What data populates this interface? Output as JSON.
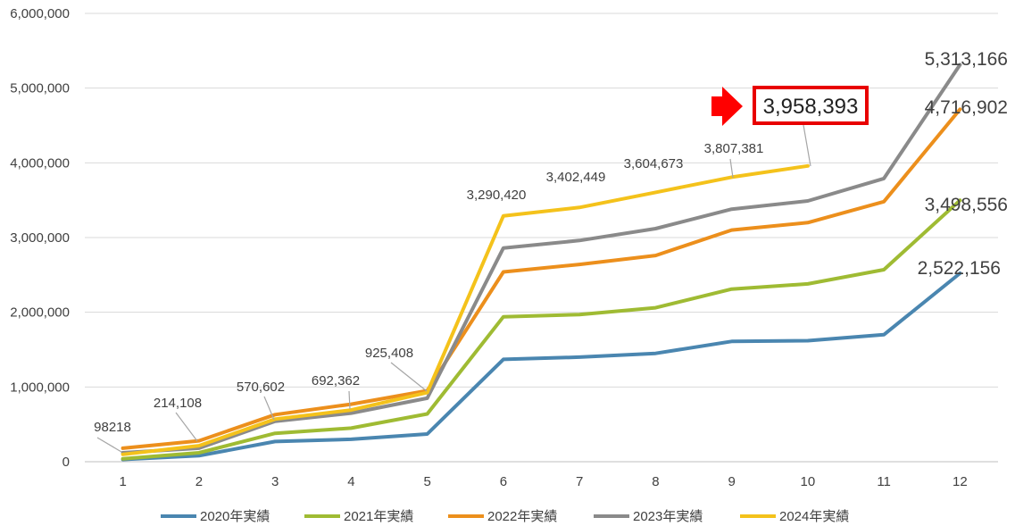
{
  "chart_data": {
    "type": "line",
    "title": "",
    "xlabel": "",
    "ylabel": "",
    "categories": [
      "1",
      "2",
      "3",
      "4",
      "5",
      "6",
      "7",
      "8",
      "9",
      "10",
      "11",
      "12"
    ],
    "ylim": [
      0,
      6000000
    ],
    "yticks": [
      0,
      1000000,
      2000000,
      3000000,
      4000000,
      5000000,
      6000000
    ],
    "ytick_labels": [
      "0",
      "1,000,000",
      "2,000,000",
      "3,000,000",
      "4,000,000",
      "5,000,000",
      "6,000,000"
    ],
    "grid": "horizontal",
    "legend_position": "bottom",
    "series": [
      {
        "name": "2020年実績",
        "color": "#4a86b0",
        "values": [
          30000,
          80000,
          270000,
          300000,
          370000,
          1370000,
          1400000,
          1450000,
          1610000,
          1620000,
          1700000,
          2522156
        ]
      },
      {
        "name": "2021年実績",
        "color": "#9fbb33",
        "values": [
          40000,
          120000,
          380000,
          450000,
          640000,
          1940000,
          1970000,
          2060000,
          2310000,
          2380000,
          2570000,
          3498556
        ]
      },
      {
        "name": "2022年実績",
        "color": "#ec8f1c",
        "values": [
          180000,
          280000,
          630000,
          770000,
          950000,
          2540000,
          2640000,
          2760000,
          3100000,
          3200000,
          3480000,
          4716902
        ]
      },
      {
        "name": "2023年実績",
        "color": "#8a8a8a",
        "values": [
          120000,
          180000,
          540000,
          650000,
          850000,
          2860000,
          2960000,
          3120000,
          3380000,
          3490000,
          3790000,
          5313166
        ]
      },
      {
        "name": "2024年実績",
        "color": "#f4c21b",
        "values": [
          98218,
          214108,
          570602,
          692362,
          925408,
          3290420,
          3402449,
          3604673,
          3807381,
          3958393,
          null,
          null
        ]
      }
    ],
    "data_labels": [
      {
        "text": "98218",
        "month": 1
      },
      {
        "text": "214,108",
        "month": 2
      },
      {
        "text": "570,602",
        "month": 3
      },
      {
        "text": "692,362",
        "month": 4
      },
      {
        "text": "925,408",
        "month": 5
      },
      {
        "text": "3,290,420",
        "month": 6
      },
      {
        "text": "3,402,449",
        "month": 7
      },
      {
        "text": "3,604,673",
        "month": 8
      },
      {
        "text": "3,807,381",
        "month": 9
      },
      {
        "text": "3,958,393",
        "month": 10
      },
      {
        "text": "5,313,166",
        "month": 12
      },
      {
        "text": "4,716,902",
        "month": 12
      },
      {
        "text": "3,498,556",
        "month": 12
      },
      {
        "text": "2,522,156",
        "month": 12
      }
    ]
  }
}
